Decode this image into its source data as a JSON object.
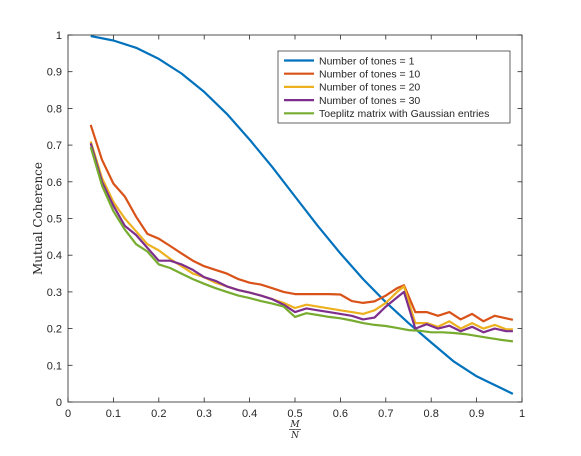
{
  "chart_data": {
    "type": "line",
    "title": "",
    "xlabel_num": "M",
    "xlabel_den": "N",
    "ylabel": "Mutual Coherence",
    "xlim": [
      0,
      1
    ],
    "ylim": [
      0,
      1
    ],
    "xticks": [
      0,
      0.1,
      0.2,
      0.3,
      0.4,
      0.5,
      0.6,
      0.7,
      0.8,
      0.9,
      1
    ],
    "xtick_labels": [
      "0",
      "0.1",
      "0.2",
      "0.3",
      "0.4",
      "0.5",
      "0.6",
      "0.7",
      "0.8",
      "0.9",
      "1"
    ],
    "yticks": [
      0,
      0.1,
      0.2,
      0.3,
      0.4,
      0.5,
      0.6,
      0.7,
      0.8,
      0.9,
      1
    ],
    "ytick_labels": [
      "0",
      "0.1",
      "0.2",
      "0.3",
      "0.4",
      "0.5",
      "0.6",
      "0.7",
      "0.8",
      "0.9",
      "1"
    ],
    "grid": false,
    "legend_position": "top-right",
    "series": [
      {
        "name": "Number of tones = 1",
        "color": "#0072BD",
        "x": [
          0.05,
          0.1,
          0.15,
          0.2,
          0.25,
          0.3,
          0.35,
          0.4,
          0.45,
          0.5,
          0.55,
          0.6,
          0.65,
          0.7,
          0.75,
          0.8,
          0.85,
          0.9,
          0.95,
          0.98
        ],
        "y": [
          0.997,
          0.985,
          0.965,
          0.935,
          0.895,
          0.845,
          0.785,
          0.715,
          0.64,
          0.56,
          0.48,
          0.405,
          0.335,
          0.272,
          0.215,
          0.162,
          0.11,
          0.07,
          0.04,
          0.022
        ]
      },
      {
        "name": "Number of tones = 10",
        "color": "#D95319",
        "x": [
          0.05,
          0.075,
          0.1,
          0.125,
          0.15,
          0.175,
          0.2,
          0.225,
          0.25,
          0.275,
          0.3,
          0.325,
          0.35,
          0.375,
          0.4,
          0.425,
          0.45,
          0.475,
          0.5,
          0.525,
          0.55,
          0.575,
          0.6,
          0.625,
          0.65,
          0.675,
          0.7,
          0.725,
          0.74,
          0.765,
          0.79,
          0.815,
          0.84,
          0.865,
          0.89,
          0.915,
          0.94,
          0.965,
          0.98
        ],
        "y": [
          0.755,
          0.66,
          0.595,
          0.56,
          0.505,
          0.458,
          0.445,
          0.425,
          0.405,
          0.385,
          0.37,
          0.36,
          0.35,
          0.335,
          0.325,
          0.32,
          0.31,
          0.3,
          0.294,
          0.294,
          0.294,
          0.294,
          0.293,
          0.275,
          0.27,
          0.274,
          0.29,
          0.31,
          0.318,
          0.245,
          0.245,
          0.235,
          0.245,
          0.225,
          0.24,
          0.22,
          0.235,
          0.228,
          0.224
        ]
      },
      {
        "name": "Number of tones = 20",
        "color": "#EDB120",
        "x": [
          0.05,
          0.075,
          0.1,
          0.125,
          0.15,
          0.175,
          0.2,
          0.225,
          0.25,
          0.275,
          0.3,
          0.325,
          0.35,
          0.375,
          0.4,
          0.425,
          0.45,
          0.475,
          0.5,
          0.525,
          0.55,
          0.575,
          0.6,
          0.625,
          0.65,
          0.675,
          0.7,
          0.725,
          0.74,
          0.765,
          0.79,
          0.815,
          0.84,
          0.865,
          0.89,
          0.915,
          0.94,
          0.965,
          0.98
        ],
        "y": [
          0.71,
          0.61,
          0.545,
          0.5,
          0.465,
          0.43,
          0.413,
          0.39,
          0.37,
          0.35,
          0.34,
          0.325,
          0.315,
          0.305,
          0.298,
          0.29,
          0.28,
          0.27,
          0.256,
          0.265,
          0.26,
          0.255,
          0.25,
          0.245,
          0.24,
          0.25,
          0.27,
          0.3,
          0.315,
          0.215,
          0.215,
          0.205,
          0.22,
          0.2,
          0.215,
          0.2,
          0.21,
          0.198,
          0.198
        ]
      },
      {
        "name": "Number of tones = 30",
        "color": "#7E2F8E",
        "x": [
          0.05,
          0.075,
          0.1,
          0.125,
          0.15,
          0.175,
          0.2,
          0.225,
          0.25,
          0.275,
          0.3,
          0.325,
          0.35,
          0.375,
          0.4,
          0.425,
          0.45,
          0.475,
          0.5,
          0.525,
          0.55,
          0.575,
          0.6,
          0.625,
          0.65,
          0.675,
          0.7,
          0.725,
          0.74,
          0.765,
          0.79,
          0.815,
          0.84,
          0.865,
          0.89,
          0.915,
          0.94,
          0.965,
          0.98
        ],
        "y": [
          0.705,
          0.6,
          0.535,
          0.48,
          0.455,
          0.42,
          0.385,
          0.385,
          0.375,
          0.36,
          0.34,
          0.33,
          0.315,
          0.305,
          0.298,
          0.29,
          0.28,
          0.265,
          0.245,
          0.255,
          0.25,
          0.245,
          0.24,
          0.235,
          0.225,
          0.23,
          0.26,
          0.285,
          0.3,
          0.2,
          0.212,
          0.2,
          0.208,
          0.193,
          0.205,
          0.19,
          0.2,
          0.193,
          0.193
        ]
      },
      {
        "name": "Toeplitz matrix with Gaussian entries",
        "color": "#77AC30",
        "x": [
          0.05,
          0.075,
          0.1,
          0.125,
          0.15,
          0.175,
          0.2,
          0.225,
          0.25,
          0.275,
          0.3,
          0.325,
          0.35,
          0.375,
          0.4,
          0.425,
          0.45,
          0.475,
          0.5,
          0.525,
          0.55,
          0.575,
          0.6,
          0.625,
          0.65,
          0.675,
          0.7,
          0.725,
          0.75,
          0.775,
          0.8,
          0.825,
          0.85,
          0.875,
          0.9,
          0.925,
          0.95,
          0.98
        ],
        "y": [
          0.695,
          0.59,
          0.52,
          0.47,
          0.43,
          0.41,
          0.375,
          0.365,
          0.35,
          0.335,
          0.322,
          0.31,
          0.3,
          0.29,
          0.283,
          0.275,
          0.268,
          0.26,
          0.232,
          0.242,
          0.237,
          0.232,
          0.228,
          0.222,
          0.215,
          0.21,
          0.207,
          0.202,
          0.196,
          0.194,
          0.19,
          0.19,
          0.188,
          0.185,
          0.18,
          0.175,
          0.17,
          0.165
        ]
      }
    ]
  }
}
